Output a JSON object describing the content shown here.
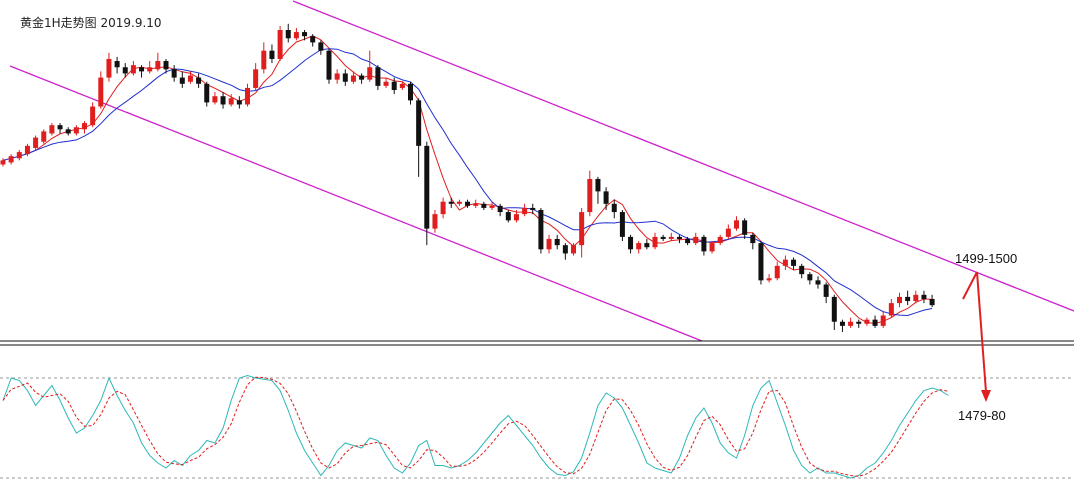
{
  "chart_data": {
    "type": "candlestick",
    "title": "黄金1H走势图  2019.9.10",
    "colors": {
      "up": "#e01e1e",
      "down": "#111111",
      "ma_fast": "#e01e1e",
      "ma_slow": "#1f2fd0",
      "channel": "#cc22cc",
      "osc_k": "#2fb8b8",
      "osc_d": "#e01e1e",
      "arrow": "#e02020",
      "grid": "#9a9a9a"
    },
    "annotations": {
      "resistance": "1499-1500",
      "target": "1479-80"
    },
    "candles": [
      {
        "o": 1501,
        "c": 1503,
        "h": 1504,
        "l": 1500
      },
      {
        "o": 1502,
        "c": 1505,
        "h": 1506,
        "l": 1501
      },
      {
        "o": 1504,
        "c": 1507,
        "h": 1508,
        "l": 1503
      },
      {
        "o": 1506,
        "c": 1510,
        "h": 1511,
        "l": 1505
      },
      {
        "o": 1509,
        "c": 1514,
        "h": 1515,
        "l": 1508
      },
      {
        "o": 1512,
        "c": 1517,
        "h": 1518,
        "l": 1511
      },
      {
        "o": 1516,
        "c": 1520,
        "h": 1521,
        "l": 1515
      },
      {
        "o": 1520,
        "c": 1518,
        "h": 1521,
        "l": 1516
      },
      {
        "o": 1518,
        "c": 1516,
        "h": 1519,
        "l": 1515
      },
      {
        "o": 1516,
        "c": 1519,
        "h": 1520,
        "l": 1515
      },
      {
        "o": 1518,
        "c": 1521,
        "h": 1522,
        "l": 1516
      },
      {
        "o": 1520,
        "c": 1529,
        "h": 1531,
        "l": 1519
      },
      {
        "o": 1529,
        "c": 1543,
        "h": 1546,
        "l": 1528
      },
      {
        "o": 1543,
        "c": 1552,
        "h": 1555,
        "l": 1541
      },
      {
        "o": 1551,
        "c": 1548,
        "h": 1553,
        "l": 1545
      },
      {
        "o": 1548,
        "c": 1545,
        "h": 1550,
        "l": 1543
      },
      {
        "o": 1545,
        "c": 1549,
        "h": 1551,
        "l": 1544
      },
      {
        "o": 1548,
        "c": 1546,
        "h": 1549,
        "l": 1543
      },
      {
        "o": 1546,
        "c": 1548,
        "h": 1551,
        "l": 1545
      },
      {
        "o": 1547,
        "c": 1551,
        "h": 1555,
        "l": 1546
      },
      {
        "o": 1551,
        "c": 1547,
        "h": 1552,
        "l": 1545
      },
      {
        "o": 1547,
        "c": 1543,
        "h": 1549,
        "l": 1541
      },
      {
        "o": 1543,
        "c": 1540,
        "h": 1546,
        "l": 1538
      },
      {
        "o": 1541,
        "c": 1544,
        "h": 1546,
        "l": 1540
      },
      {
        "o": 1543,
        "c": 1540,
        "h": 1545,
        "l": 1538
      },
      {
        "o": 1540,
        "c": 1531,
        "h": 1541,
        "l": 1529
      },
      {
        "o": 1531,
        "c": 1534,
        "h": 1536,
        "l": 1530
      },
      {
        "o": 1534,
        "c": 1530,
        "h": 1536,
        "l": 1528
      },
      {
        "o": 1530,
        "c": 1533,
        "h": 1535,
        "l": 1529
      },
      {
        "o": 1532,
        "c": 1530,
        "h": 1534,
        "l": 1528
      },
      {
        "o": 1530,
        "c": 1538,
        "h": 1540,
        "l": 1529
      },
      {
        "o": 1538,
        "c": 1547,
        "h": 1550,
        "l": 1537
      },
      {
        "o": 1547,
        "c": 1556,
        "h": 1560,
        "l": 1545
      },
      {
        "o": 1556,
        "c": 1552,
        "h": 1559,
        "l": 1550
      },
      {
        "o": 1552,
        "c": 1566,
        "h": 1568,
        "l": 1551
      },
      {
        "o": 1566,
        "c": 1562,
        "h": 1569,
        "l": 1560
      },
      {
        "o": 1562,
        "c": 1565,
        "h": 1567,
        "l": 1561
      },
      {
        "o": 1565,
        "c": 1563,
        "h": 1566,
        "l": 1561
      },
      {
        "o": 1563,
        "c": 1560,
        "h": 1564,
        "l": 1558
      },
      {
        "o": 1560,
        "c": 1556,
        "h": 1561,
        "l": 1554
      },
      {
        "o": 1556,
        "c": 1542,
        "h": 1557,
        "l": 1540
      },
      {
        "o": 1542,
        "c": 1545,
        "h": 1547,
        "l": 1540
      },
      {
        "o": 1545,
        "c": 1541,
        "h": 1547,
        "l": 1539
      },
      {
        "o": 1541,
        "c": 1544,
        "h": 1546,
        "l": 1540
      },
      {
        "o": 1544,
        "c": 1542,
        "h": 1545,
        "l": 1540
      },
      {
        "o": 1542,
        "c": 1548,
        "h": 1556,
        "l": 1541
      },
      {
        "o": 1548,
        "c": 1539,
        "h": 1549,
        "l": 1537
      },
      {
        "o": 1539,
        "c": 1541,
        "h": 1543,
        "l": 1538
      },
      {
        "o": 1541,
        "c": 1537,
        "h": 1543,
        "l": 1535
      },
      {
        "o": 1538,
        "c": 1540,
        "h": 1541,
        "l": 1537
      },
      {
        "o": 1540,
        "c": 1532,
        "h": 1541,
        "l": 1530
      },
      {
        "o": 1532,
        "c": 1510,
        "h": 1533,
        "l": 1495
      },
      {
        "o": 1510,
        "c": 1470,
        "h": 1512,
        "l": 1462
      },
      {
        "o": 1470,
        "c": 1477,
        "h": 1479,
        "l": 1468
      },
      {
        "o": 1477,
        "c": 1483,
        "h": 1485,
        "l": 1475
      },
      {
        "o": 1483,
        "c": 1482,
        "h": 1485,
        "l": 1480
      },
      {
        "o": 1482,
        "c": 1483,
        "h": 1484,
        "l": 1481
      },
      {
        "o": 1483,
        "c": 1481,
        "h": 1484,
        "l": 1480
      },
      {
        "o": 1481,
        "c": 1482,
        "h": 1484,
        "l": 1480
      },
      {
        "o": 1482,
        "c": 1480,
        "h": 1483,
        "l": 1479
      },
      {
        "o": 1480,
        "c": 1481,
        "h": 1483,
        "l": 1479
      },
      {
        "o": 1481,
        "c": 1478,
        "h": 1482,
        "l": 1476
      },
      {
        "o": 1478,
        "c": 1474,
        "h": 1479,
        "l": 1473
      },
      {
        "o": 1474,
        "c": 1477,
        "h": 1479,
        "l": 1473
      },
      {
        "o": 1477,
        "c": 1480,
        "h": 1482,
        "l": 1476
      },
      {
        "o": 1480,
        "c": 1479,
        "h": 1482,
        "l": 1477
      },
      {
        "o": 1479,
        "c": 1460,
        "h": 1480,
        "l": 1458
      },
      {
        "o": 1460,
        "c": 1465,
        "h": 1467,
        "l": 1458
      },
      {
        "o": 1465,
        "c": 1462,
        "h": 1467,
        "l": 1460
      },
      {
        "o": 1462,
        "c": 1458,
        "h": 1463,
        "l": 1455
      },
      {
        "o": 1458,
        "c": 1462,
        "h": 1463,
        "l": 1457
      },
      {
        "o": 1462,
        "c": 1478,
        "h": 1480,
        "l": 1456
      },
      {
        "o": 1478,
        "c": 1494,
        "h": 1498,
        "l": 1476
      },
      {
        "o": 1494,
        "c": 1488,
        "h": 1495,
        "l": 1482
      },
      {
        "o": 1488,
        "c": 1482,
        "h": 1490,
        "l": 1479
      },
      {
        "o": 1482,
        "c": 1478,
        "h": 1484,
        "l": 1475
      },
      {
        "o": 1478,
        "c": 1466,
        "h": 1479,
        "l": 1464
      },
      {
        "o": 1466,
        "c": 1460,
        "h": 1467,
        "l": 1458
      },
      {
        "o": 1460,
        "c": 1463,
        "h": 1464,
        "l": 1458
      },
      {
        "o": 1463,
        "c": 1461,
        "h": 1465,
        "l": 1460
      },
      {
        "o": 1461,
        "c": 1466,
        "h": 1468,
        "l": 1460
      },
      {
        "o": 1466,
        "c": 1465,
        "h": 1467,
        "l": 1464
      },
      {
        "o": 1465,
        "c": 1466,
        "h": 1468,
        "l": 1464
      },
      {
        "o": 1466,
        "c": 1465,
        "h": 1467,
        "l": 1463
      },
      {
        "o": 1465,
        "c": 1463,
        "h": 1466,
        "l": 1462
      },
      {
        "o": 1463,
        "c": 1466,
        "h": 1468,
        "l": 1462
      },
      {
        "o": 1466,
        "c": 1459,
        "h": 1467,
        "l": 1457
      },
      {
        "o": 1459,
        "c": 1463,
        "h": 1464,
        "l": 1458
      },
      {
        "o": 1463,
        "c": 1466,
        "h": 1467,
        "l": 1462
      },
      {
        "o": 1466,
        "c": 1470,
        "h": 1472,
        "l": 1465
      },
      {
        "o": 1470,
        "c": 1474,
        "h": 1476,
        "l": 1469
      },
      {
        "o": 1474,
        "c": 1467,
        "h": 1475,
        "l": 1465
      },
      {
        "o": 1467,
        "c": 1463,
        "h": 1468,
        "l": 1460
      },
      {
        "o": 1463,
        "c": 1445,
        "h": 1464,
        "l": 1443
      },
      {
        "o": 1445,
        "c": 1446,
        "h": 1448,
        "l": 1444
      },
      {
        "o": 1446,
        "c": 1452,
        "h": 1454,
        "l": 1445
      },
      {
        "o": 1452,
        "c": 1455,
        "h": 1457,
        "l": 1450
      },
      {
        "o": 1455,
        "c": 1452,
        "h": 1456,
        "l": 1450
      },
      {
        "o": 1452,
        "c": 1448,
        "h": 1453,
        "l": 1446
      },
      {
        "o": 1448,
        "c": 1445,
        "h": 1449,
        "l": 1443
      },
      {
        "o": 1445,
        "c": 1443,
        "h": 1447,
        "l": 1441
      },
      {
        "o": 1443,
        "c": 1437,
        "h": 1444,
        "l": 1434
      },
      {
        "o": 1437,
        "c": 1425,
        "h": 1438,
        "l": 1421
      },
      {
        "o": 1425,
        "c": 1423,
        "h": 1426,
        "l": 1420
      },
      {
        "o": 1423,
        "c": 1425,
        "h": 1427,
        "l": 1422
      },
      {
        "o": 1425,
        "c": 1424,
        "h": 1426,
        "l": 1422
      },
      {
        "o": 1424,
        "c": 1426,
        "h": 1427,
        "l": 1423
      },
      {
        "o": 1426,
        "c": 1423,
        "h": 1428,
        "l": 1422
      },
      {
        "o": 1423,
        "c": 1428,
        "h": 1430,
        "l": 1422
      },
      {
        "o": 1428,
        "c": 1434,
        "h": 1436,
        "l": 1427
      },
      {
        "o": 1434,
        "c": 1437,
        "h": 1439,
        "l": 1432
      },
      {
        "o": 1437,
        "c": 1435,
        "h": 1440,
        "l": 1433
      },
      {
        "o": 1435,
        "c": 1438,
        "h": 1440,
        "l": 1434
      },
      {
        "o": 1438,
        "c": 1436,
        "h": 1440,
        "l": 1434
      },
      {
        "o": 1436,
        "c": 1433,
        "h": 1438,
        "l": 1432
      }
    ],
    "osc_k": [
      62,
      80,
      78,
      70,
      58,
      66,
      74,
      62,
      48,
      36,
      40,
      50,
      62,
      80,
      66,
      54,
      44,
      28,
      18,
      12,
      8,
      14,
      10,
      18,
      22,
      30,
      28,
      40,
      62,
      80,
      82,
      80,
      79,
      78,
      70,
      54,
      36,
      22,
      12,
      2,
      10,
      22,
      28,
      26,
      24,
      32,
      30,
      18,
      8,
      4,
      12,
      26,
      30,
      10,
      10,
      8,
      10,
      14,
      20,
      28,
      36,
      44,
      50,
      42,
      34,
      26,
      16,
      8,
      3,
      2,
      5,
      16,
      36,
      58,
      68,
      64,
      56,
      42,
      28,
      12,
      8,
      6,
      4,
      16,
      34,
      48,
      56,
      44,
      28,
      20,
      16,
      34,
      58,
      72,
      78,
      60,
      42,
      22,
      10,
      4,
      8,
      4,
      4,
      2,
      0,
      2,
      8,
      12,
      20,
      30,
      42,
      52,
      62,
      70,
      72,
      70,
      66
    ]
  },
  "levels": {
    "resistance_value": 1499.5,
    "target_value": 1479.5
  }
}
